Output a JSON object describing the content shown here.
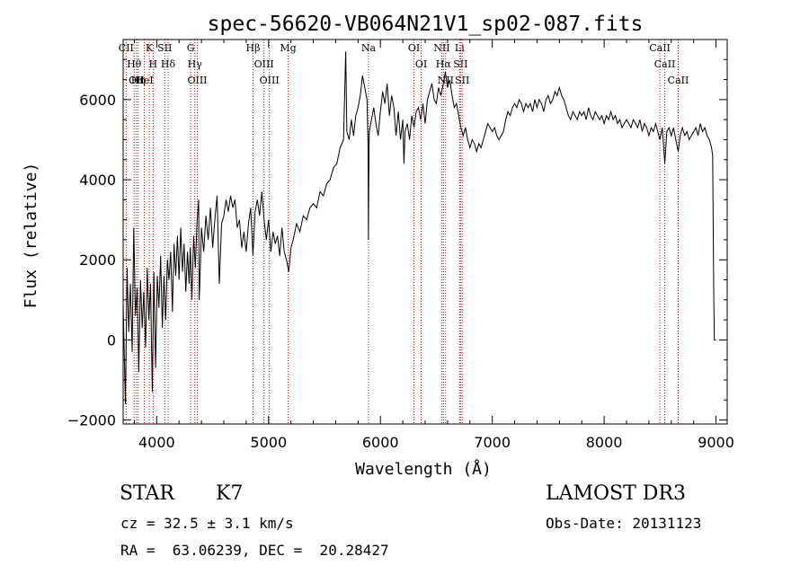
{
  "chart_data": {
    "type": "line",
    "title": "spec-56620-VB064N21V1_sp02-087.fits",
    "xlabel": "Wavelength (Å)",
    "ylabel": "Flux (relative)",
    "xlim": [
      3700,
      9100
    ],
    "ylim": [
      -2100,
      7500
    ],
    "x_ticks": [
      4000,
      5000,
      6000,
      7000,
      8000,
      9000
    ],
    "y_ticks": [
      -2000,
      0,
      2000,
      4000,
      6000
    ],
    "x_tick_labels": [
      "4000",
      "5000",
      "6000",
      "7000",
      "8000",
      "9000"
    ],
    "y_tick_labels": [
      "−2000",
      "0",
      "2000",
      "4000",
      "6000"
    ],
    "grid": false,
    "line_color": "#000000",
    "marker_color": "#cc0000",
    "series": [
      {
        "points": [
          [
            3700,
            900
          ],
          [
            3720,
            -1600
          ],
          [
            3735,
            1800
          ],
          [
            3750,
            200
          ],
          [
            3765,
            1400
          ],
          [
            3780,
            -300
          ],
          [
            3795,
            2800
          ],
          [
            3810,
            600
          ],
          [
            3825,
            1300
          ],
          [
            3840,
            -800
          ],
          [
            3855,
            1500
          ],
          [
            3870,
            300
          ],
          [
            3885,
            1200
          ],
          [
            3900,
            -200
          ],
          [
            3915,
            1800
          ],
          [
            3930,
            500
          ],
          [
            3945,
            1400
          ],
          [
            3960,
            -1300
          ],
          [
            3975,
            1700
          ],
          [
            3990,
            -700
          ],
          [
            4005,
            1600
          ],
          [
            4020,
            800
          ],
          [
            4035,
            2100
          ],
          [
            4050,
            300
          ],
          [
            4065,
            1600
          ],
          [
            4080,
            500
          ],
          [
            4095,
            2000
          ],
          [
            4110,
            1500
          ],
          [
            4125,
            2200
          ],
          [
            4140,
            700
          ],
          [
            4155,
            2400
          ],
          [
            4170,
            1600
          ],
          [
            4185,
            2600
          ],
          [
            4200,
            1500
          ],
          [
            4215,
            2800
          ],
          [
            4230,
            1700
          ],
          [
            4245,
            2400
          ],
          [
            4260,
            1200
          ],
          [
            4275,
            2200
          ],
          [
            4290,
            1400
          ],
          [
            4300,
            2300
          ],
          [
            4315,
            1000
          ],
          [
            4330,
            2600
          ],
          [
            4345,
            1800
          ],
          [
            4360,
            2900
          ],
          [
            4375,
            3500
          ],
          [
            4380,
            1000
          ],
          [
            4390,
            1800
          ],
          [
            4400,
            2800
          ],
          [
            4420,
            2200
          ],
          [
            4440,
            3100
          ],
          [
            4460,
            2500
          ],
          [
            4480,
            3300
          ],
          [
            4500,
            2300
          ],
          [
            4520,
            3000
          ],
          [
            4540,
            3600
          ],
          [
            4560,
            1400
          ],
          [
            4580,
            2900
          ],
          [
            4600,
            3100
          ],
          [
            4620,
            3500
          ],
          [
            4640,
            3200
          ],
          [
            4660,
            3600
          ],
          [
            4680,
            3300
          ],
          [
            4700,
            3500
          ],
          [
            4720,
            2800
          ],
          [
            4740,
            3000
          ],
          [
            4760,
            2300
          ],
          [
            4780,
            2700
          ],
          [
            4800,
            2200
          ],
          [
            4820,
            2900
          ],
          [
            4840,
            3300
          ],
          [
            4860,
            2100
          ],
          [
            4880,
            3200
          ],
          [
            4900,
            3500
          ],
          [
            4920,
            3100
          ],
          [
            4940,
            3700
          ],
          [
            4960,
            3000
          ],
          [
            4980,
            2500
          ],
          [
            5000,
            3000
          ],
          [
            5020,
            2200
          ],
          [
            5040,
            2700
          ],
          [
            5060,
            2400
          ],
          [
            5080,
            2600
          ],
          [
            5100,
            2100
          ],
          [
            5120,
            2800
          ],
          [
            5140,
            2200
          ],
          [
            5160,
            2000
          ],
          [
            5180,
            1700
          ],
          [
            5200,
            2300
          ],
          [
            5220,
            2500
          ],
          [
            5250,
            2900
          ],
          [
            5280,
            2700
          ],
          [
            5310,
            3100
          ],
          [
            5340,
            3000
          ],
          [
            5370,
            3300
          ],
          [
            5400,
            3400
          ],
          [
            5430,
            3300
          ],
          [
            5460,
            3700
          ],
          [
            5490,
            3600
          ],
          [
            5520,
            3900
          ],
          [
            5550,
            4000
          ],
          [
            5580,
            4300
          ],
          [
            5610,
            4400
          ],
          [
            5640,
            4800
          ],
          [
            5670,
            5000
          ],
          [
            5690,
            7200
          ],
          [
            5700,
            5200
          ],
          [
            5720,
            5000
          ],
          [
            5740,
            5500
          ],
          [
            5760,
            5100
          ],
          [
            5780,
            5600
          ],
          [
            5800,
            5800
          ],
          [
            5820,
            6100
          ],
          [
            5840,
            6600
          ],
          [
            5860,
            6300
          ],
          [
            5880,
            6000
          ],
          [
            5890,
            4800
          ],
          [
            5893,
            2500
          ],
          [
            5896,
            4200
          ],
          [
            5900,
            5200
          ],
          [
            5920,
            5500
          ],
          [
            5940,
            5800
          ],
          [
            5960,
            5400
          ],
          [
            5980,
            5100
          ],
          [
            6000,
            5700
          ],
          [
            6020,
            6200
          ],
          [
            6040,
            5900
          ],
          [
            6060,
            6400
          ],
          [
            6080,
            5600
          ],
          [
            6100,
            6100
          ],
          [
            6120,
            5800
          ],
          [
            6140,
            5100
          ],
          [
            6160,
            5700
          ],
          [
            6180,
            5000
          ],
          [
            6200,
            5500
          ],
          [
            6210,
            4400
          ],
          [
            6220,
            5200
          ],
          [
            6240,
            5400
          ],
          [
            6260,
            5000
          ],
          [
            6280,
            5600
          ],
          [
            6300,
            5300
          ],
          [
            6320,
            5700
          ],
          [
            6340,
            5800
          ],
          [
            6360,
            5500
          ],
          [
            6380,
            5900
          ],
          [
            6400,
            5400
          ],
          [
            6420,
            6000
          ],
          [
            6440,
            6200
          ],
          [
            6460,
            6400
          ],
          [
            6480,
            6000
          ],
          [
            6500,
            5900
          ],
          [
            6520,
            6300
          ],
          [
            6540,
            6100
          ],
          [
            6563,
            6400
          ],
          [
            6580,
            6700
          ],
          [
            6600,
            6300
          ],
          [
            6620,
            6500
          ],
          [
            6640,
            6100
          ],
          [
            6660,
            5800
          ],
          [
            6680,
            5900
          ],
          [
            6700,
            5600
          ],
          [
            6720,
            5300
          ],
          [
            6740,
            5100
          ],
          [
            6760,
            5300
          ],
          [
            6780,
            5000
          ],
          [
            6800,
            4800
          ],
          [
            6820,
            5000
          ],
          [
            6840,
            4900
          ],
          [
            6860,
            4700
          ],
          [
            6880,
            4900
          ],
          [
            6900,
            4800
          ],
          [
            6920,
            5000
          ],
          [
            6940,
            5200
          ],
          [
            6960,
            5400
          ],
          [
            6980,
            5300
          ],
          [
            7000,
            5200
          ],
          [
            7020,
            5300
          ],
          [
            7040,
            5100
          ],
          [
            7060,
            5000
          ],
          [
            7080,
            5100
          ],
          [
            7100,
            5200
          ],
          [
            7120,
            5500
          ],
          [
            7140,
            5700
          ],
          [
            7160,
            5600
          ],
          [
            7180,
            5800
          ],
          [
            7200,
            5900
          ],
          [
            7220,
            5800
          ],
          [
            7240,
            6000
          ],
          [
            7260,
            5900
          ],
          [
            7280,
            5700
          ],
          [
            7300,
            5900
          ],
          [
            7320,
            5800
          ],
          [
            7340,
            5900
          ],
          [
            7360,
            5700
          ],
          [
            7380,
            6000
          ],
          [
            7400,
            5800
          ],
          [
            7420,
            6000
          ],
          [
            7440,
            5900
          ],
          [
            7460,
            5700
          ],
          [
            7480,
            6000
          ],
          [
            7500,
            6100
          ],
          [
            7520,
            5900
          ],
          [
            7540,
            6000
          ],
          [
            7560,
            6200
          ],
          [
            7580,
            6100
          ],
          [
            7600,
            6300
          ],
          [
            7620,
            6100
          ],
          [
            7640,
            6000
          ],
          [
            7660,
            5800
          ],
          [
            7680,
            5600
          ],
          [
            7700,
            5500
          ],
          [
            7720,
            5700
          ],
          [
            7740,
            5600
          ],
          [
            7760,
            5500
          ],
          [
            7780,
            5700
          ],
          [
            7800,
            5600
          ],
          [
            7820,
            5700
          ],
          [
            7840,
            5500
          ],
          [
            7860,
            5800
          ],
          [
            7880,
            5600
          ],
          [
            7900,
            5500
          ],
          [
            7920,
            5700
          ],
          [
            7940,
            5600
          ],
          [
            7960,
            5500
          ],
          [
            7980,
            5600
          ],
          [
            8000,
            5400
          ],
          [
            8020,
            5600
          ],
          [
            8040,
            5500
          ],
          [
            8060,
            5700
          ],
          [
            8080,
            5500
          ],
          [
            8100,
            5600
          ],
          [
            8120,
            5400
          ],
          [
            8140,
            5500
          ],
          [
            8160,
            5300
          ],
          [
            8180,
            5400
          ],
          [
            8200,
            5500
          ],
          [
            8220,
            5400
          ],
          [
            8240,
            5300
          ],
          [
            8260,
            5500
          ],
          [
            8280,
            5400
          ],
          [
            8300,
            5300
          ],
          [
            8320,
            5500
          ],
          [
            8340,
            5200
          ],
          [
            8360,
            5400
          ],
          [
            8380,
            5300
          ],
          [
            8400,
            5100
          ],
          [
            8420,
            5300
          ],
          [
            8440,
            5200
          ],
          [
            8460,
            5400
          ],
          [
            8480,
            5200
          ],
          [
            8498,
            5000
          ],
          [
            8520,
            5300
          ],
          [
            8542,
            4400
          ],
          [
            8560,
            5200
          ],
          [
            8580,
            5300
          ],
          [
            8600,
            5100
          ],
          [
            8620,
            5300
          ],
          [
            8640,
            5000
          ],
          [
            8662,
            4700
          ],
          [
            8680,
            5100
          ],
          [
            8700,
            5300
          ],
          [
            8720,
            5100
          ],
          [
            8740,
            5200
          ],
          [
            8760,
            5000
          ],
          [
            8780,
            5100
          ],
          [
            8800,
            5200
          ],
          [
            8820,
            5300
          ],
          [
            8840,
            5100
          ],
          [
            8860,
            5400
          ],
          [
            8880,
            5200
          ],
          [
            8900,
            5300
          ],
          [
            8920,
            5100
          ],
          [
            8940,
            5000
          ],
          [
            8960,
            4800
          ],
          [
            8970,
            4600
          ],
          [
            8980,
            1000
          ],
          [
            8985,
            0
          ],
          [
            9000,
            0
          ]
        ]
      }
    ],
    "line_markers": [
      {
        "name": "CII",
        "wavelength": 3727
      },
      {
        "name": "Hθ",
        "wavelength": 3798
      },
      {
        "name": "OII",
        "wavelength": 3820
      },
      {
        "name": "Hη",
        "wavelength": 3835
      },
      {
        "name": "HeI",
        "wavelength": 3889
      },
      {
        "name": "K",
        "wavelength": 3934
      },
      {
        "name": "H",
        "wavelength": 3968
      },
      {
        "name": "SII",
        "wavelength": 4072
      },
      {
        "name": "Hδ",
        "wavelength": 4102
      },
      {
        "name": "G",
        "wavelength": 4304
      },
      {
        "name": "Hγ",
        "wavelength": 4341
      },
      {
        "name": "OIII",
        "wavelength": 4363
      },
      {
        "name": "Hβ",
        "wavelength": 4861
      },
      {
        "name": "OIII",
        "wavelength": 4959
      },
      {
        "name": "OIII",
        "wavelength": 5007
      },
      {
        "name": "Mg",
        "wavelength": 5175
      },
      {
        "name": "Na",
        "wavelength": 5893
      },
      {
        "name": "OI",
        "wavelength": 6300
      },
      {
        "name": "OI",
        "wavelength": 6364
      },
      {
        "name": "NII",
        "wavelength": 6548
      },
      {
        "name": "Hα",
        "wavelength": 6563
      },
      {
        "name": "NII",
        "wavelength": 6583
      },
      {
        "name": "Li",
        "wavelength": 6708
      },
      {
        "name": "SII",
        "wavelength": 6716
      },
      {
        "name": "SII",
        "wavelength": 6731
      },
      {
        "name": "CaII",
        "wavelength": 8498
      },
      {
        "name": "CaII",
        "wavelength": 8542
      },
      {
        "name": "CaII",
        "wavelength": 8662
      }
    ]
  },
  "info": {
    "object_class": "STAR",
    "subclass": "K7",
    "survey": "LAMOST DR3",
    "redshift": "cz = 32.5 ± 3.1 km/s",
    "obs_date": "Obs-Date: 20131123",
    "coords": "RA =  63.06239, DEC =  20.28427"
  }
}
